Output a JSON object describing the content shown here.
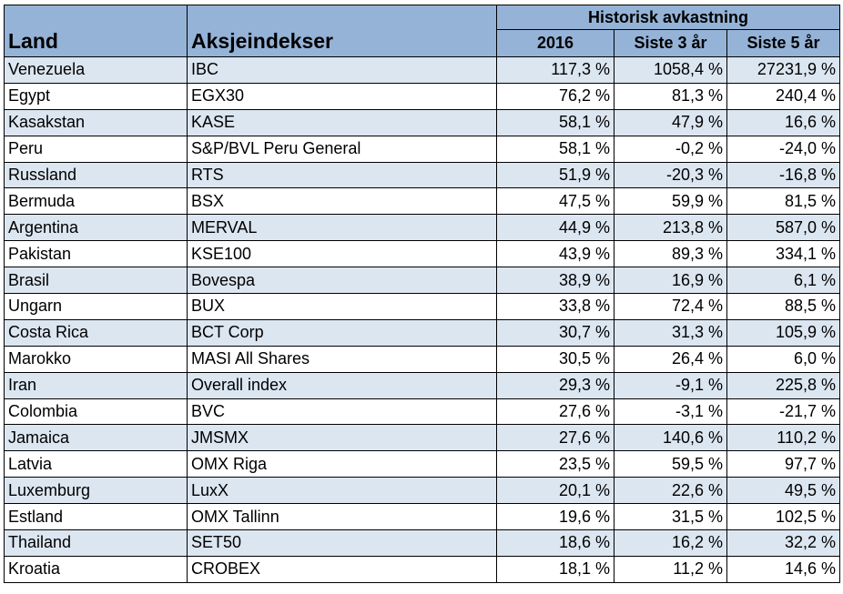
{
  "headers": {
    "land": "Land",
    "index": "Aksjeindekser",
    "group": "Historisk avkastning",
    "y2016": "2016",
    "y3": "Siste 3 år",
    "y5": "Siste 5 år"
  },
  "rows": [
    [
      "Venezuela",
      "IBC",
      "117,3 %",
      "1058,4 %",
      "27231,9 %"
    ],
    [
      "Egypt",
      "EGX30",
      "76,2 %",
      "81,3 %",
      "240,4 %"
    ],
    [
      "Kasakstan",
      "KASE",
      "58,1 %",
      "47,9 %",
      "16,6 %"
    ],
    [
      "Peru",
      "S&P/BVL Peru General",
      "58,1 %",
      "-0,2 %",
      "-24,0 %"
    ],
    [
      "Russland",
      "RTS",
      "51,9 %",
      "-20,3 %",
      "-16,8 %"
    ],
    [
      "Bermuda",
      "BSX",
      "47,5 %",
      "59,9 %",
      "81,5 %"
    ],
    [
      "Argentina",
      "MERVAL",
      "44,9 %",
      "213,8 %",
      "587,0 %"
    ],
    [
      "Pakistan",
      "KSE100",
      "43,9 %",
      "89,3 %",
      "334,1 %"
    ],
    [
      "Brasil",
      "Bovespa",
      "38,9 %",
      "16,9 %",
      "6,1 %"
    ],
    [
      "Ungarn",
      "BUX",
      "33,8 %",
      "72,4 %",
      "88,5 %"
    ],
    [
      "Costa Rica",
      "BCT Corp",
      "30,7 %",
      "31,3 %",
      "105,9 %"
    ],
    [
      "Marokko",
      "MASI All Shares",
      "30,5 %",
      "26,4 %",
      "6,0 %"
    ],
    [
      "Iran",
      "Overall index",
      "29,3 %",
      "-9,1 %",
      "225,8 %"
    ],
    [
      "Colombia",
      "BVC",
      "27,6 %",
      "-3,1 %",
      "-21,7 %"
    ],
    [
      "Jamaica",
      "JMSMX",
      "27,6 %",
      "140,6 %",
      "110,2 %"
    ],
    [
      "Latvia",
      "OMX Riga",
      "23,5 %",
      "59,5 %",
      "97,7 %"
    ],
    [
      "Luxemburg",
      "LuxX",
      "20,1 %",
      "22,6 %",
      "49,5 %"
    ],
    [
      "Estland",
      "OMX Tallinn",
      "19,6 %",
      "31,5 %",
      "102,5 %"
    ],
    [
      "Thailand",
      "SET50",
      "18,6 %",
      "16,2 %",
      "32,2 %"
    ],
    [
      "Kroatia",
      "CROBEX",
      "18,1 %",
      "11,2 %",
      "14,6 %"
    ]
  ],
  "colors": {
    "header_bg": "#95b3d7",
    "band_bg": "#dce6f1"
  }
}
